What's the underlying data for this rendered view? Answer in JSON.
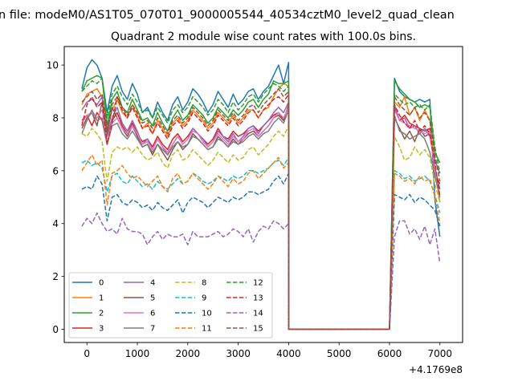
{
  "figure": {
    "suptitle": "n file: modeM0/AS1T05_070T01_9000005544_40534cztM0_level2_quad_clean",
    "title": "Quadrant 2 module wise count rates with 100.0s bins.",
    "x_offset_text": "+4.1769e8"
  },
  "chart_data": {
    "type": "line",
    "title": "Quadrant 2 module wise count rates with 100.0s bins.",
    "xlabel": "",
    "ylabel": "",
    "xlim": [
      -450,
      7450
    ],
    "ylim": [
      -0.5,
      10.7
    ],
    "x_ticks": [
      0,
      1000,
      2000,
      3000,
      4000,
      5000,
      6000,
      7000
    ],
    "x_tick_labels": [
      "0",
      "1000",
      "2000",
      "3000",
      "4000",
      "5000",
      "6000",
      "7000"
    ],
    "y_ticks": [
      0,
      2,
      4,
      6,
      8,
      10
    ],
    "y_tick_labels": [
      "0",
      "2",
      "4",
      "6",
      "8",
      "10"
    ],
    "x_offset": "+4.1769e8",
    "grid": false,
    "legend_position": "lower-left",
    "legend_columns": 4,
    "segments": {
      "active1": {
        "x_start": -100,
        "x_end": 3900
      },
      "gap": [
        4000,
        4100,
        4200,
        4300,
        4400,
        4500,
        4600,
        4700,
        4800,
        4900,
        5000,
        5100,
        5200,
        5300,
        5400,
        5500,
        5600,
        5700,
        5800,
        5900,
        6000
      ],
      "active2": {
        "x_start": 6100,
        "x_end": 7000
      }
    },
    "series": [
      {
        "name": "0",
        "color": "#1f77b4",
        "dash": "solid",
        "active1": [
          9.1,
          9.9,
          10.2,
          10.0,
          9.5,
          8.2,
          9.2,
          9.6,
          9.0,
          8.7,
          9.3,
          8.9,
          8.2,
          8.4,
          8.0,
          8.6,
          8.2,
          7.9,
          8.5,
          8.8,
          8.3,
          8.6,
          9.1,
          8.9,
          8.6,
          8.2,
          8.5,
          9.0,
          8.7,
          8.4,
          8.9,
          8.5,
          8.7,
          9.0,
          9.1,
          8.7,
          9.0,
          9.2,
          9.6,
          10.0,
          9.3,
          10.1
        ],
        "active2": [
          9.5,
          9.0,
          8.8,
          8.7,
          8.6,
          8.7,
          8.6,
          8.7,
          4.9
        ],
        "end": 3.5
      },
      {
        "name": "1",
        "color": "#ff7f0e",
        "dash": "solid",
        "active1": [
          8.5,
          8.9,
          9.0,
          9.1,
          8.8,
          7.5,
          8.3,
          8.7,
          8.2,
          8.0,
          8.5,
          8.1,
          7.6,
          7.8,
          7.4,
          7.9,
          7.6,
          7.3,
          7.8,
          8.0,
          7.7,
          7.9,
          8.3,
          8.1,
          7.9,
          7.6,
          7.8,
          8.2,
          8.0,
          7.8,
          8.1,
          7.8,
          8.0,
          8.3,
          8.3,
          8.0,
          8.3,
          8.4,
          8.8,
          9.1,
          9.3,
          9.2
        ],
        "active2": [
          8.6,
          8.4,
          8.8,
          8.1,
          8.4,
          7.9,
          8.3,
          7.9,
          6.2
        ],
        "end": 4.8
      },
      {
        "name": "2",
        "color": "#2ca02c",
        "dash": "solid",
        "active1": [
          9.0,
          9.4,
          9.5,
          9.6,
          9.5,
          7.7,
          8.7,
          9.0,
          8.4,
          8.2,
          8.7,
          8.3,
          7.9,
          8.0,
          7.7,
          8.2,
          7.8,
          7.5,
          8.0,
          8.3,
          7.9,
          8.1,
          8.5,
          8.3,
          8.1,
          7.8,
          8.0,
          8.4,
          8.2,
          8.0,
          8.3,
          8.1,
          8.3,
          8.6,
          8.7,
          8.4,
          8.7,
          8.9,
          9.4,
          9.3,
          9.3,
          9.4
        ],
        "active2": [
          9.4,
          9.1,
          8.9,
          8.7,
          8.6,
          8.4,
          8.5,
          8.4,
          6.7
        ],
        "end": 6.3
      },
      {
        "name": "3",
        "color": "#d62728",
        "dash": "solid",
        "active1": [
          7.9,
          8.1,
          7.7,
          8.2,
          7.9,
          7.0,
          7.9,
          8.2,
          7.7,
          7.4,
          7.8,
          7.4,
          7.1,
          7.2,
          6.9,
          7.3,
          7.0,
          6.8,
          7.2,
          7.4,
          7.1,
          7.3,
          7.6,
          7.4,
          7.2,
          7.0,
          7.2,
          7.6,
          7.3,
          7.2,
          7.5,
          7.3,
          7.4,
          7.6,
          7.7,
          7.5,
          7.7,
          7.9,
          8.1,
          8.2,
          7.9,
          8.5
        ],
        "active2": [
          8.4,
          7.9,
          8.1,
          7.8,
          7.7,
          7.6,
          7.5,
          7.6,
          5.9
        ],
        "end": 5.5
      },
      {
        "name": "4",
        "color": "#9467bd",
        "dash": "solid",
        "active1": [
          8.3,
          8.6,
          8.7,
          8.5,
          8.8,
          7.3,
          8.0,
          8.4,
          7.8,
          7.5,
          7.9,
          7.5,
          7.0,
          7.2,
          6.8,
          7.2,
          6.9,
          6.6,
          7.0,
          7.3,
          7.0,
          7.2,
          7.6,
          7.4,
          7.2,
          6.9,
          7.1,
          7.5,
          7.3,
          7.1,
          7.4,
          7.1,
          7.3,
          7.6,
          7.7,
          7.4,
          7.7,
          7.9,
          8.2,
          8.4,
          8.2,
          8.6
        ],
        "active2": [
          8.5,
          7.9,
          8.0,
          7.6,
          7.7,
          7.4,
          7.6,
          7.3,
          6.4
        ],
        "end": 5.9
      },
      {
        "name": "5",
        "color": "#8c564b",
        "dash": "solid",
        "active1": [
          7.6,
          8.0,
          8.2,
          7.7,
          8.6,
          7.4,
          8.4,
          8.0,
          7.6,
          7.3,
          7.7,
          7.3,
          6.9,
          7.0,
          6.6,
          7.0,
          6.7,
          6.4,
          6.8,
          7.1,
          6.8,
          7.0,
          7.4,
          7.2,
          7.0,
          6.8,
          6.9,
          7.3,
          7.1,
          6.9,
          7.2,
          7.0,
          7.2,
          7.4,
          7.5,
          7.3,
          7.5,
          7.7,
          8.0,
          8.1,
          7.9,
          8.5
        ],
        "active2": [
          8.0,
          7.6,
          7.2,
          7.5,
          7.1,
          7.6,
          7.3,
          7.4,
          6.1
        ],
        "end": 5.3
      },
      {
        "name": "6",
        "color": "#e377c2",
        "dash": "solid",
        "active1": [
          7.8,
          8.1,
          8.2,
          8.0,
          8.3,
          7.1,
          7.8,
          8.0,
          7.6,
          7.4,
          7.7,
          7.4,
          7.0,
          7.1,
          6.8,
          7.2,
          6.9,
          6.7,
          7.0,
          7.3,
          7.0,
          7.2,
          7.5,
          7.4,
          7.1,
          6.9,
          7.1,
          7.4,
          7.2,
          7.0,
          7.3,
          7.1,
          7.2,
          7.5,
          7.6,
          7.3,
          7.5,
          7.7,
          8.0,
          8.2,
          8.0,
          8.4
        ],
        "active2": [
          8.3,
          7.9,
          7.8,
          7.7,
          7.6,
          7.5,
          7.4,
          7.5,
          6.0
        ],
        "end": 5.1
      },
      {
        "name": "7",
        "color": "#7f7f7f",
        "dash": "solid",
        "active1": [
          7.4,
          7.9,
          8.3,
          7.9,
          8.0,
          7.0,
          7.7,
          7.8,
          7.4,
          7.2,
          7.5,
          7.2,
          6.9,
          7.0,
          6.7,
          7.0,
          6.8,
          6.6,
          6.9,
          7.1,
          6.9,
          7.0,
          7.3,
          7.2,
          7.0,
          6.8,
          6.9,
          7.2,
          7.1,
          6.9,
          7.1,
          7.0,
          7.1,
          7.3,
          7.4,
          7.2,
          7.4,
          7.5,
          7.8,
          8.0,
          7.8,
          8.3
        ],
        "active2": [
          8.1,
          7.5,
          7.4,
          7.2,
          7.3,
          7.4,
          7.2,
          6.7,
          5.8
        ],
        "end": 5.0
      },
      {
        "name": "8",
        "color": "#bcbd22",
        "dash": "dashed",
        "active1": [
          7.4,
          7.3,
          7.6,
          7.4,
          7.1,
          5.6,
          6.7,
          6.9,
          6.8,
          6.9,
          6.7,
          6.9,
          6.6,
          6.4,
          6.5,
          6.7,
          6.3,
          6.1,
          6.6,
          6.8,
          6.4,
          6.5,
          6.8,
          6.6,
          6.4,
          6.2,
          6.4,
          6.7,
          6.5,
          6.3,
          6.6,
          6.4,
          6.5,
          6.8,
          6.9,
          6.6,
          6.8,
          7.0,
          7.3,
          7.5,
          7.3,
          7.7
        ],
        "active2": [
          7.3,
          6.9,
          6.4,
          6.5,
          6.9,
          6.6,
          6.8,
          6.5,
          5.5
        ],
        "end": 4.8
      },
      {
        "name": "9",
        "color": "#17becf",
        "dash": "dashed",
        "active1": [
          6.3,
          6.4,
          6.2,
          6.3,
          6.1,
          5.2,
          5.8,
          5.9,
          5.6,
          5.5,
          5.8,
          5.6,
          5.4,
          5.5,
          5.3,
          5.6,
          5.4,
          5.3,
          5.5,
          5.7,
          5.5,
          5.6,
          5.9,
          5.8,
          5.6,
          5.5,
          5.6,
          5.8,
          5.7,
          5.6,
          5.8,
          5.7,
          5.8,
          6.0,
          6.0,
          5.9,
          6.0,
          6.1,
          6.3,
          6.4,
          6.2,
          6.5
        ],
        "active2": [
          6.0,
          5.9,
          5.7,
          5.8,
          5.6,
          5.7,
          5.8,
          5.6,
          5.1
        ],
        "end": 4.4
      },
      {
        "name": "10",
        "color": "#1f77b4",
        "dash": "dashed",
        "active1": [
          5.3,
          5.4,
          5.3,
          5.8,
          5.5,
          4.1,
          5.0,
          5.1,
          4.8,
          4.7,
          4.9,
          4.8,
          4.6,
          4.7,
          4.5,
          4.8,
          4.6,
          4.5,
          4.7,
          4.9,
          4.4,
          4.8,
          5.0,
          4.9,
          4.8,
          4.6,
          4.8,
          5.0,
          4.9,
          4.8,
          5.0,
          4.9,
          5.0,
          5.2,
          5.2,
          5.1,
          5.2,
          5.3,
          5.6,
          5.8,
          5.5,
          5.9
        ],
        "active2": [
          5.1,
          5.0,
          4.9,
          5.1,
          4.8,
          5.0,
          4.9,
          4.7,
          4.5
        ],
        "end": 3.9
      },
      {
        "name": "11",
        "color": "#ff7f0e",
        "dash": "dashed",
        "active1": [
          6.0,
          6.3,
          6.6,
          6.2,
          6.4,
          4.7,
          5.9,
          6.0,
          6.2,
          5.9,
          5.7,
          5.8,
          5.6,
          5.4,
          5.6,
          5.8,
          5.4,
          5.2,
          5.7,
          5.9,
          5.5,
          5.6,
          5.9,
          5.7,
          5.5,
          5.3,
          5.5,
          5.8,
          5.6,
          5.4,
          5.7,
          5.5,
          5.6,
          5.9,
          6.0,
          5.7,
          5.9,
          6.1,
          6.3,
          6.5,
          6.1,
          6.3
        ],
        "active2": [
          5.9,
          5.8,
          5.6,
          5.7,
          5.5,
          5.8,
          5.6,
          5.7,
          5.0
        ],
        "end": 4.0
      },
      {
        "name": "12",
        "color": "#2ca02c",
        "dash": "dashed",
        "active1": [
          9.0,
          9.2,
          9.4,
          9.3,
          9.5,
          8.0,
          8.9,
          9.2,
          8.8,
          8.5,
          8.9,
          8.6,
          8.2,
          8.3,
          8.0,
          8.4,
          8.1,
          7.8,
          8.3,
          8.5,
          8.2,
          8.4,
          8.8,
          8.6,
          8.4,
          8.1,
          8.3,
          8.7,
          8.5,
          8.2,
          8.6,
          8.3,
          8.5,
          8.8,
          8.9,
          8.6,
          8.9,
          9.1,
          9.3,
          9.2,
          9.0,
          9.2
        ],
        "active2": [
          8.9,
          8.7,
          8.5,
          8.6,
          8.4,
          8.5,
          8.3,
          8.5,
          6.9
        ],
        "end": 5.9
      },
      {
        "name": "13",
        "color": "#d62728",
        "dash": "dashed",
        "active1": [
          7.7,
          8.5,
          8.8,
          8.4,
          8.6,
          7.0,
          7.8,
          8.8,
          8.3,
          8.0,
          8.4,
          8.0,
          7.6,
          7.7,
          7.4,
          7.8,
          7.5,
          7.2,
          7.7,
          7.9,
          7.6,
          7.8,
          8.2,
          8.0,
          7.8,
          7.5,
          7.7,
          8.1,
          7.9,
          7.7,
          8.0,
          7.7,
          7.9,
          8.2,
          8.3,
          8.0,
          8.3,
          8.5,
          8.7,
          8.8,
          8.6,
          8.9
        ],
        "active2": [
          8.5,
          8.1,
          7.8,
          7.6,
          7.9,
          7.5,
          7.7,
          7.4,
          6.3
        ],
        "end": 5.0
      },
      {
        "name": "14",
        "color": "#9467bd",
        "dash": "dashed",
        "active1": [
          3.9,
          4.2,
          4.0,
          4.4,
          4.0,
          3.7,
          3.8,
          3.6,
          4.2,
          3.8,
          3.7,
          3.7,
          3.6,
          3.2,
          3.5,
          3.7,
          3.4,
          3.6,
          3.5,
          3.5,
          3.6,
          3.2,
          3.7,
          3.5,
          3.5,
          3.5,
          3.6,
          3.7,
          3.5,
          3.6,
          3.8,
          3.7,
          3.5,
          3.8,
          3.3,
          3.7,
          3.9,
          3.8,
          4.1,
          4.0,
          3.8,
          4.0
        ],
        "active2": [
          3.5,
          4.1,
          4.1,
          3.6,
          3.8,
          3.4,
          3.9,
          3.2,
          3.8
        ],
        "end": 2.5
      },
      {
        "name": "15",
        "color": "#8c564b",
        "dash": "dashed",
        "active1": [
          8.6,
          8.8,
          9.0,
          8.7,
          8.9,
          7.6,
          8.5,
          8.8,
          8.4,
          8.1,
          8.5,
          8.2,
          7.8,
          7.9,
          7.6,
          8.0,
          7.7,
          7.4,
          7.9,
          8.1,
          7.8,
          8.0,
          8.4,
          8.2,
          8.0,
          7.7,
          7.9,
          8.3,
          8.1,
          7.9,
          8.2,
          7.9,
          8.1,
          8.4,
          8.5,
          8.2,
          8.5,
          8.7,
          8.9,
          9.1,
          8.8,
          9.0
        ],
        "active2": [
          8.8,
          8.5,
          8.3,
          8.1,
          8.4,
          8.0,
          8.2,
          7.9,
          6.6
        ],
        "end": 5.6
      }
    ]
  }
}
